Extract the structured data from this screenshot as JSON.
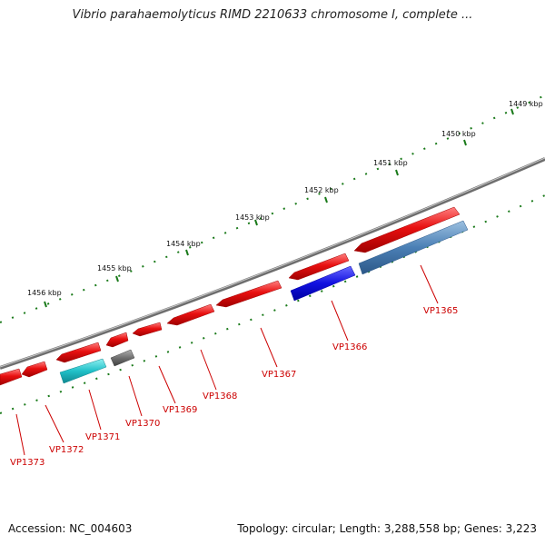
{
  "title": "Vibrio parahaemolyticus RIMD 2210633 chromosome I, complete ...",
  "footer": {
    "accession": "Accession: NC_004603",
    "stats": "Topology: circular; Length: 3,288,558 bp; Genes: 3,223"
  },
  "scale": {
    "ticks": [
      {
        "label": "1449 kbp",
        "pos_kbp": 1449
      },
      {
        "label": "1450 kbp",
        "pos_kbp": 1450
      },
      {
        "label": "1451 kbp",
        "pos_kbp": 1451
      },
      {
        "label": "1452 kbp",
        "pos_kbp": 1452
      },
      {
        "label": "1453 kbp",
        "pos_kbp": 1453
      },
      {
        "label": "1454 kbp",
        "pos_kbp": 1454
      },
      {
        "label": "1455 kbp",
        "pos_kbp": 1455
      },
      {
        "label": "1456 kbp",
        "pos_kbp": 1456
      }
    ]
  },
  "colors": {
    "backbone": "#8a8a8a",
    "tick": "#1a7a1a",
    "label": "#cc0000",
    "leader": "#cc0000"
  },
  "genes": [
    {
      "name": "VP1365",
      "color": "#4a7fb5",
      "strand": "reverse"
    },
    {
      "name": "VP1366",
      "color": "#1010e0",
      "strand": "reverse"
    },
    {
      "name": "VP1367",
      "color": "#e81010",
      "strand": "forward"
    },
    {
      "name": "VP1368",
      "color": "#e81010",
      "strand": "forward"
    },
    {
      "name": "VP1369",
      "color": "#e81010",
      "strand": "forward"
    },
    {
      "name": "VP1370",
      "color": "#707070",
      "strand": "reverse"
    },
    {
      "name": "VP1371",
      "color": "#20c0c8",
      "strand": "reverse"
    },
    {
      "name": "VP1372",
      "color": "#e81010",
      "strand": "forward"
    },
    {
      "name": "VP1373",
      "color": "#e81010",
      "strand": "forward"
    }
  ]
}
